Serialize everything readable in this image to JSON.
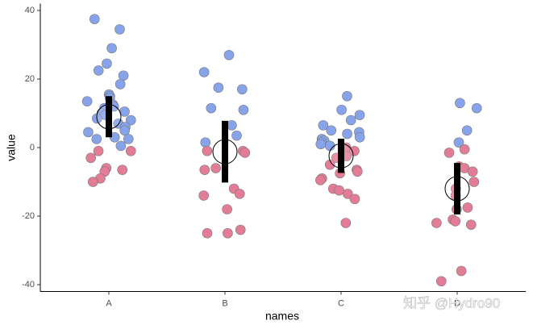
{
  "chart_data": {
    "type": "scatter",
    "x_label": "names",
    "y_label": "value",
    "categories": [
      "A",
      "B",
      "C",
      "D"
    ],
    "series": [
      {
        "color": "#87a3ea",
        "values": [
          [
            37.5,
            34.5,
            29,
            24.5,
            22.5,
            21,
            18.5,
            15.5,
            15,
            14.5,
            13.5,
            12.5,
            12,
            11.5,
            10.5,
            10,
            9.5,
            8.5,
            8,
            7,
            6,
            5,
            4.5,
            3,
            2.5,
            2.5,
            0.5
          ],
          [
            27,
            22,
            17.5,
            17,
            11.5,
            11,
            6.5,
            3.5,
            1.5
          ],
          [
            15,
            11,
            9.5,
            8,
            6.5,
            5,
            4.5,
            4,
            3,
            2.5,
            2,
            1.5,
            1,
            0.5
          ],
          [
            13,
            11.5,
            5,
            1.5
          ]
        ]
      },
      {
        "color": "#e37d97",
        "values": [
          [
            -1,
            -1,
            -3,
            -6,
            -6.5,
            -7,
            -9,
            -10
          ],
          [
            -1,
            -1,
            -1.5,
            -6,
            -6.5,
            -12,
            -13.5,
            -14,
            -18,
            -24,
            -25,
            -25
          ],
          [
            0,
            -1,
            -2.5,
            -3,
            -5,
            -6.5,
            -7,
            -7.5,
            -9,
            -9.5,
            -12,
            -12.5,
            -13.5,
            -15,
            -22
          ],
          [
            -0.5,
            -1.5,
            -5.5,
            -6,
            -7,
            -10,
            -12,
            -14,
            -17.5,
            -18,
            -21,
            -21.5,
            -22,
            -22.5,
            -36,
            -39
          ]
        ]
      }
    ],
    "means": [
      9,
      -1.2,
      -2.4,
      -12
    ],
    "errors": [
      6,
      9,
      5,
      7.5
    ],
    "ylim": [
      -42,
      42
    ],
    "yticks": [
      40,
      20,
      0,
      -20,
      -40
    ],
    "watermark": "知乎 @Hydro90"
  }
}
